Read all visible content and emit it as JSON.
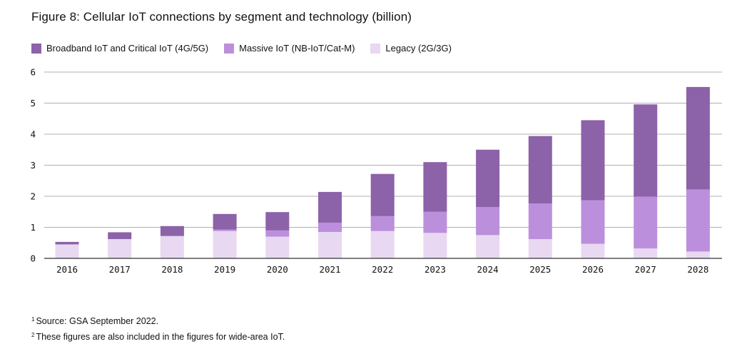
{
  "title": "Figure 8: Cellular IoT connections by segment and technology (billion)",
  "colors": {
    "broadband": "#8c62a8",
    "massive": "#bc8fdc",
    "legacy": "#e8d8f1",
    "grid": "#b0b0b0",
    "axis": "#333333"
  },
  "legend": [
    {
      "label": "Broadband IoT and Critical IoT (4G/5G)",
      "color": "#8c62a8"
    },
    {
      "label": "Massive IoT (NB-IoT/Cat-M)",
      "color": "#bc8fdc"
    },
    {
      "label": "Legacy (2G/3G)",
      "color": "#e8d8f1"
    }
  ],
  "chart_data": {
    "type": "bar",
    "stacked": true,
    "title": "Figure 8: Cellular IoT connections by segment and technology (billion)",
    "xlabel": "",
    "ylabel": "",
    "ylim": [
      0,
      6
    ],
    "yticks": [
      "0",
      "1",
      "2",
      "3",
      "4",
      "5",
      "6"
    ],
    "grid": true,
    "legend_position": "top-left",
    "categories": [
      "2016",
      "2017",
      "2018",
      "2019",
      "2020",
      "2021",
      "2022",
      "2023",
      "2024",
      "2025",
      "2026",
      "2027",
      "2028"
    ],
    "series": [
      {
        "name": "Legacy (2G/3G)",
        "key": "legacy",
        "values": [
          0.45,
          0.62,
          0.72,
          0.88,
          0.7,
          0.85,
          0.88,
          0.82,
          0.75,
          0.62,
          0.47,
          0.32,
          0.22
        ]
      },
      {
        "name": "Massive IoT (NB-IoT/Cat-M)",
        "key": "massive",
        "values": [
          0.0,
          0.0,
          0.0,
          0.05,
          0.2,
          0.3,
          0.48,
          0.68,
          0.9,
          1.15,
          1.4,
          1.67,
          2.0
        ]
      },
      {
        "name": "Broadband IoT and Critical IoT (4G/5G)",
        "key": "broadband",
        "values": [
          0.08,
          0.22,
          0.32,
          0.5,
          0.59,
          0.99,
          1.36,
          1.6,
          1.85,
          2.17,
          2.58,
          2.97,
          3.3
        ]
      }
    ]
  },
  "footnotes": [
    {
      "marker": "1",
      "text": "Source: GSA September 2022."
    },
    {
      "marker": "2",
      "text": "These figures are also included in the figures for wide-area IoT."
    }
  ]
}
